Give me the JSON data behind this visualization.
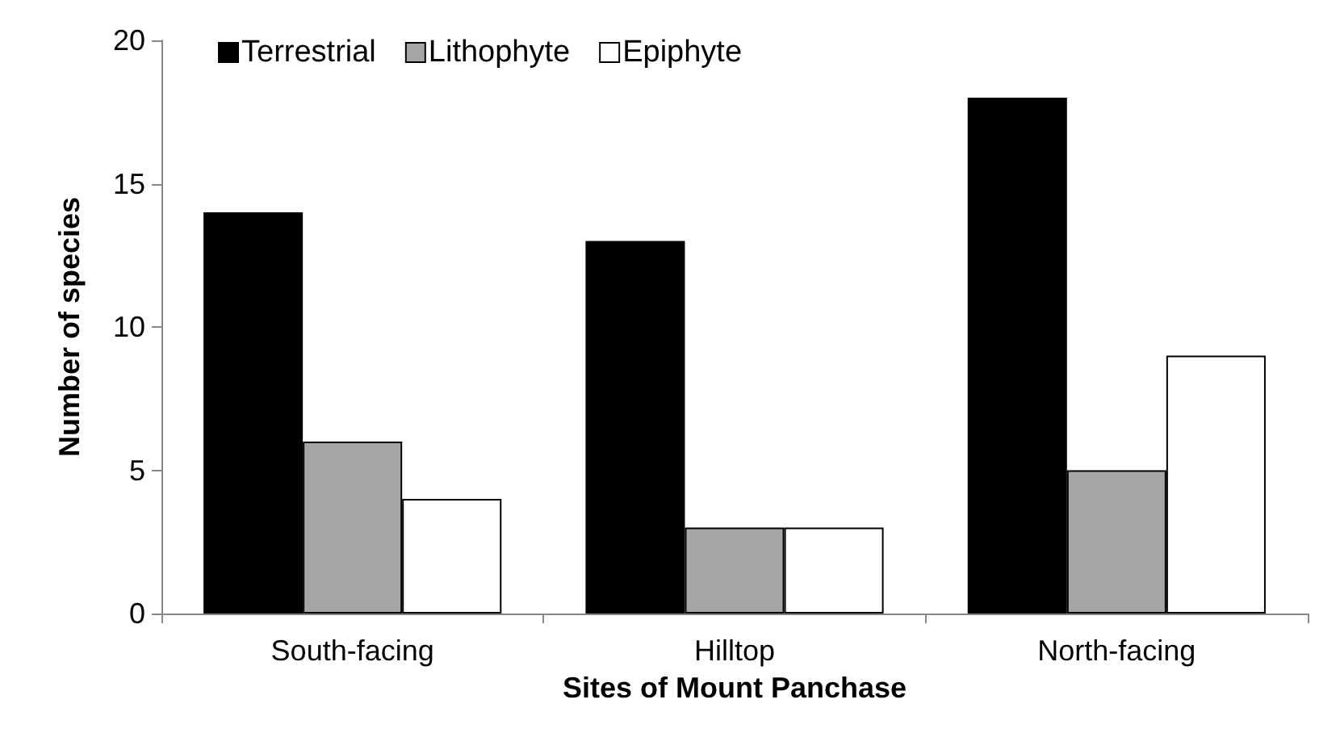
{
  "chart_data": {
    "type": "bar",
    "xlabel": "Sites of Mount Panchase",
    "ylabel": "Number of species",
    "categories": [
      "South-facing",
      "Hilltop",
      "North-facing"
    ],
    "series": [
      {
        "name": "Terrestrial",
        "color": "#000000",
        "values": [
          14,
          13,
          18
        ]
      },
      {
        "name": "Lithophyte",
        "color": "#a6a6a6",
        "values": [
          6,
          3,
          5
        ]
      },
      {
        "name": "Epiphyte",
        "color": "#ffffff",
        "values": [
          4,
          3,
          9
        ]
      }
    ],
    "ylim": [
      0,
      20
    ],
    "yticks": [
      0,
      5,
      10,
      15,
      20
    ],
    "grid": false,
    "legend": "top left"
  }
}
